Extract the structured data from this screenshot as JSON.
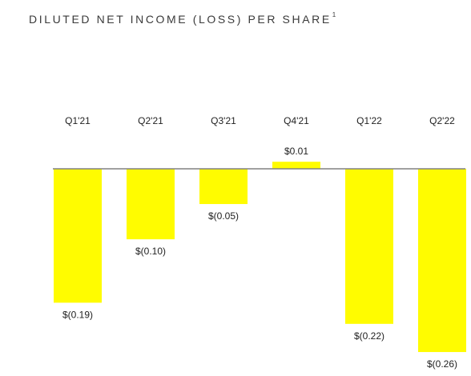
{
  "chart_data": {
    "type": "bar",
    "title": "DILUTED NET INCOME (LOSS) PER SHARE",
    "title_superscript": "1",
    "categories": [
      "Q1'21",
      "Q2'21",
      "Q3'21",
      "Q4'21",
      "Q1'22",
      "Q2'22"
    ],
    "values": [
      -0.19,
      -0.1,
      -0.05,
      0.01,
      -0.22,
      -0.26
    ],
    "value_labels": [
      "$(0.19)",
      "$(0.10)",
      "$(0.05)",
      "$0.01",
      "$(0.22)",
      "$(0.26)"
    ],
    "xlabel": "",
    "ylabel": "",
    "ylim": [
      -0.26,
      0.01
    ],
    "grid": false,
    "legend": "none",
    "bar_color": "#FFFC00",
    "baseline_color": "#808080"
  }
}
